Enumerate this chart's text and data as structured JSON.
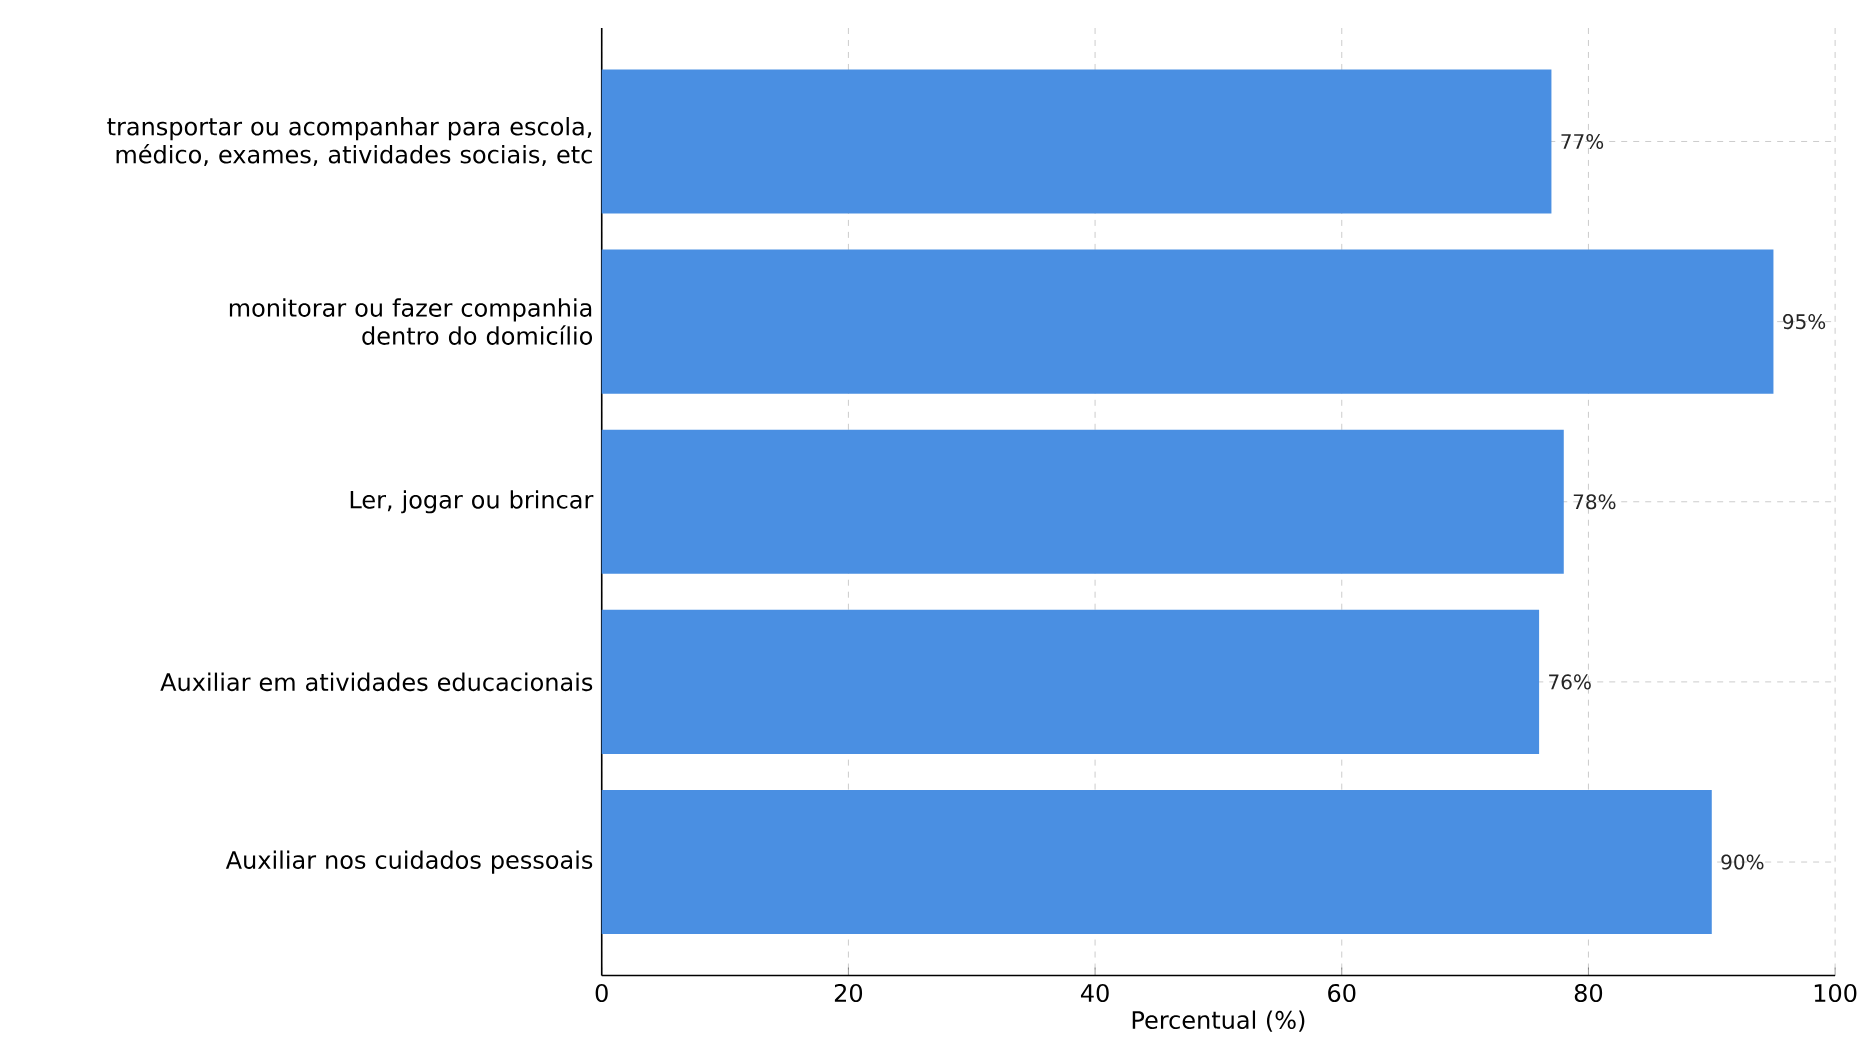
{
  "chart_data": {
    "type": "bar",
    "orientation": "horizontal",
    "xlabel": "Percentual (%)",
    "categories": [
      "transportar ou acompanhar para escola, médico, exames, atividades sociais, etc",
      "monitorar ou fazer companhia dentro do domicílio",
      "Ler, jogar ou brincar",
      "Auxiliar em atividades educacionais",
      "Auxiliar nos cuidados pessoais"
    ],
    "values": [
      77,
      95,
      78,
      76,
      90
    ],
    "value_labels": [
      "77%",
      "95%",
      "78%",
      "76%",
      "90%"
    ],
    "color": "#4a8fe2",
    "xlim": [
      0,
      100
    ],
    "xticks": [
      0,
      20,
      40,
      60,
      80,
      100
    ],
    "grid": true
  }
}
